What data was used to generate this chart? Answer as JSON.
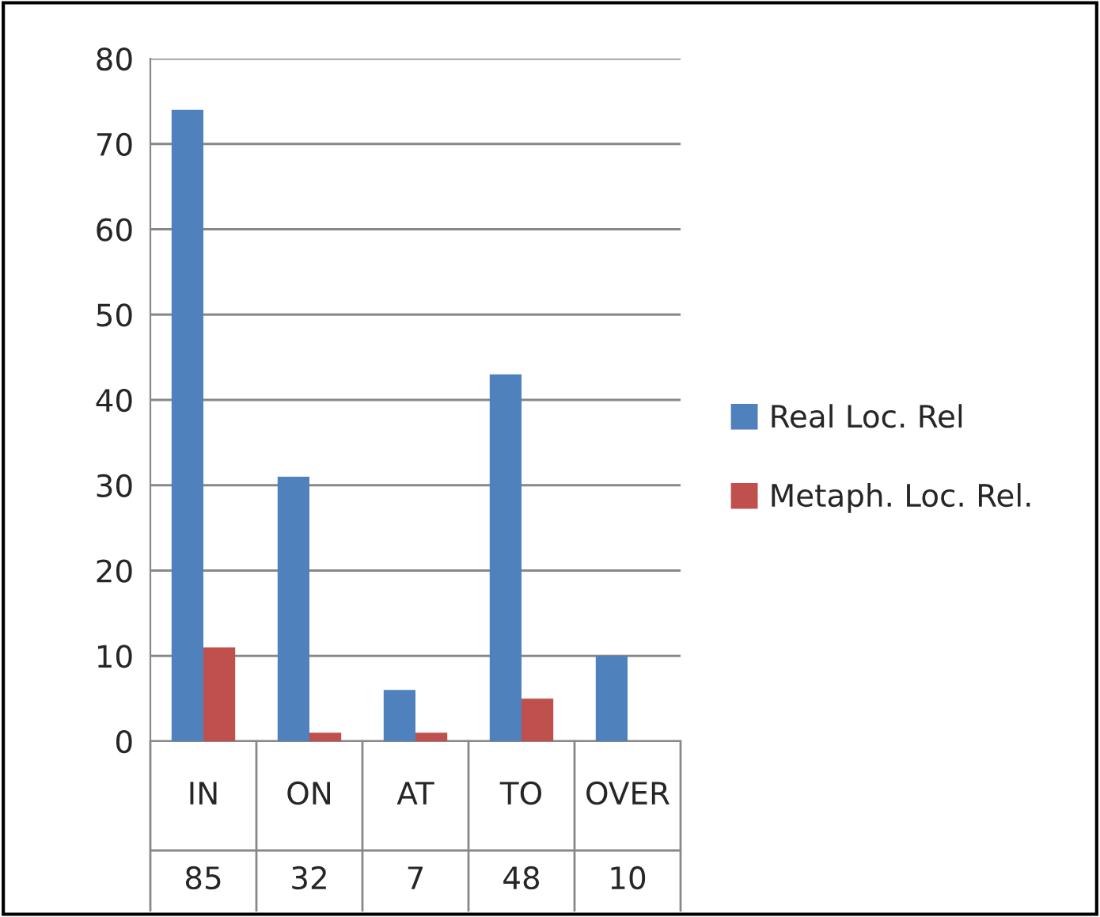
{
  "chart_data": {
    "type": "bar",
    "categories": [
      "IN",
      "ON",
      "AT",
      "TO",
      "OVER"
    ],
    "series": [
      {
        "name": "Real Loc. Rel",
        "color": "#4f81bd",
        "values": [
          74,
          31,
          6,
          43,
          10
        ]
      },
      {
        "name": "Metaph. Loc. Rel.",
        "color": "#c0504d",
        "values": [
          11,
          1,
          1,
          5,
          0
        ]
      }
    ],
    "annotations": [
      "85",
      "32",
      "7",
      "48",
      "10"
    ],
    "ylim": [
      0,
      80
    ],
    "yticks": [
      0,
      10,
      20,
      30,
      40,
      50,
      60,
      70,
      80
    ],
    "grid": "y",
    "legend": "right"
  }
}
